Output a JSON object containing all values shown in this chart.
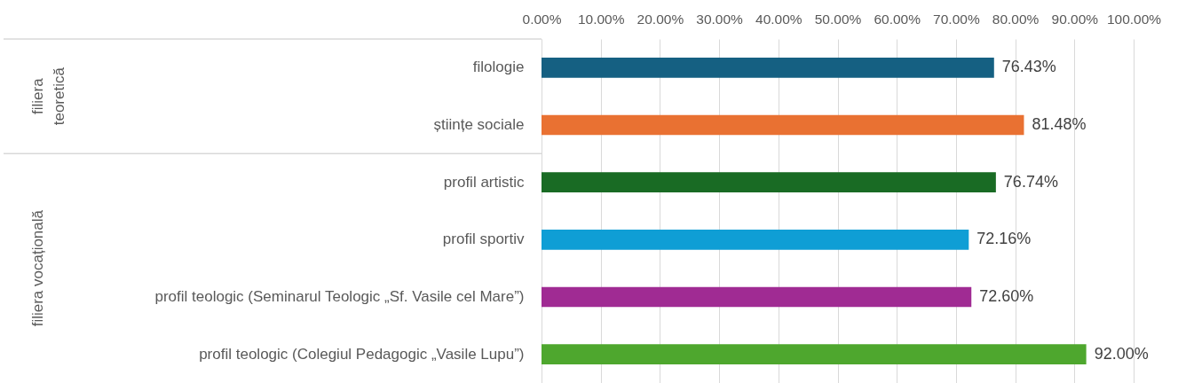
{
  "chart_data": {
    "type": "bar",
    "orientation": "horizontal",
    "categories": [
      "filologie",
      "științe sociale",
      "profil artistic",
      "profil sportiv",
      "profil teologic (Seminarul Teologic „Sf. Vasile cel Mare”)",
      "profil teologic (Colegiul Pedagogic „Vasile Lupu”)"
    ],
    "values": [
      76.43,
      81.48,
      76.74,
      72.16,
      72.6,
      92.0
    ],
    "colors": [
      "#156082",
      "#e97132",
      "#196b24",
      "#0f9ed5",
      "#a02b93",
      "#4ea72e"
    ],
    "value_labels": [
      "76.43%",
      "81.48%",
      "76.74%",
      "72.16%",
      "72.60%",
      "92.00%"
    ],
    "xlim": [
      0,
      100
    ],
    "xticks": [
      {
        "value": 0,
        "label": "0.00%"
      },
      {
        "value": 10,
        "label": "10.00%"
      },
      {
        "value": 20,
        "label": "20.00%"
      },
      {
        "value": 30,
        "label": "30.00%"
      },
      {
        "value": 40,
        "label": "40.00%"
      },
      {
        "value": 50,
        "label": "50.00%"
      },
      {
        "value": 60,
        "label": "60.00%"
      },
      {
        "value": 70,
        "label": "70.00%"
      },
      {
        "value": 80,
        "label": "80.00%"
      },
      {
        "value": 90,
        "label": "90.00%"
      },
      {
        "value": 100,
        "label": "100.00%"
      }
    ],
    "grid": "x",
    "annotations": [
      "filiera teoretică",
      "filiera vocațională"
    ]
  }
}
